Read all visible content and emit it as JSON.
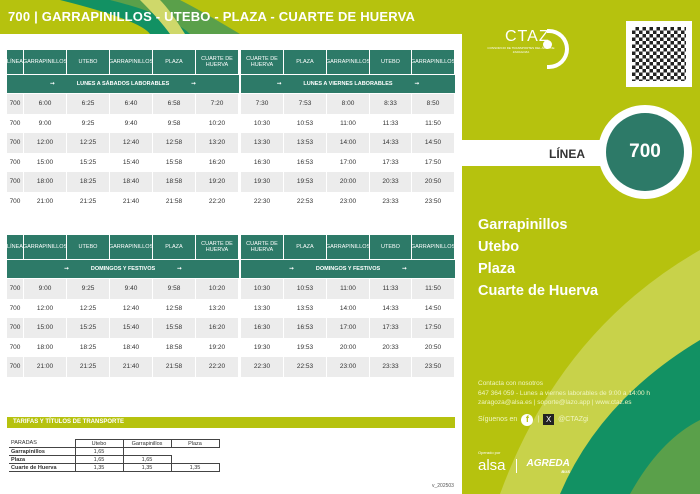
{
  "title": "700 | GARRAPINILLOS - UTEBO - PLAZA - CUARTE DE HUERVA",
  "colors": {
    "lime": "#b6c20e",
    "teal": "#2d7a68",
    "dark_green": "#129163"
  },
  "columns": [
    "LÍNEA",
    "GARRAPINILLOS",
    "UTEBO",
    "GARRAPINILLOS",
    "PLAZA",
    "CUARTE DE HUERVA",
    "CUARTE DE HUERVA",
    "PLAZA",
    "GARRAPINILLOS",
    "UTEBO",
    "GARRAPINILLOS"
  ],
  "weekday": {
    "outbound_label": "LUNES A SÁBADOS LABORABLES",
    "return_label": "LUNES A VIERNES LABORABLES",
    "rows": [
      [
        "700",
        "6:00",
        "6:25",
        "6:40",
        "6:58",
        "7:20",
        "7:30",
        "7:53",
        "8:00",
        "8:33",
        "8:50"
      ],
      [
        "700",
        "9:00",
        "9:25",
        "9:40",
        "9:58",
        "10:20",
        "10:30",
        "10:53",
        "11:00",
        "11:33",
        "11:50"
      ],
      [
        "700",
        "12:00",
        "12:25",
        "12:40",
        "12:58",
        "13:20",
        "13:30",
        "13:53",
        "14:00",
        "14:33",
        "14:50"
      ],
      [
        "700",
        "15:00",
        "15:25",
        "15:40",
        "15:58",
        "16:20",
        "16:30",
        "16:53",
        "17:00",
        "17:33",
        "17:50"
      ],
      [
        "700",
        "18:00",
        "18:25",
        "18:40",
        "18:58",
        "19:20",
        "19:30",
        "19:53",
        "20:00",
        "20:33",
        "20:50"
      ],
      [
        "700",
        "21:00",
        "21:25",
        "21:40",
        "21:58",
        "22:20",
        "22:30",
        "22:53",
        "23:00",
        "23:33",
        "23:50"
      ]
    ]
  },
  "holiday": {
    "outbound_label": "DOMINGOS Y FESTIVOS",
    "return_label": "DOMINGOS Y FESTIVOS",
    "rows": [
      [
        "700",
        "9:00",
        "9:25",
        "9:40",
        "9:58",
        "10:20",
        "10:30",
        "10:53",
        "11:00",
        "11:33",
        "11:50"
      ],
      [
        "700",
        "12:00",
        "12:25",
        "12:40",
        "12:58",
        "13:20",
        "13:30",
        "13:53",
        "14:00",
        "14:33",
        "14:50"
      ],
      [
        "700",
        "15:00",
        "15:25",
        "15:40",
        "15:58",
        "16:20",
        "16:30",
        "16:53",
        "17:00",
        "17:33",
        "17:50"
      ],
      [
        "700",
        "18:00",
        "18:25",
        "18:40",
        "18:58",
        "19:20",
        "19:30",
        "19:53",
        "20:00",
        "20:33",
        "20:50"
      ],
      [
        "700",
        "21:00",
        "21:25",
        "21:40",
        "21:58",
        "22:20",
        "22:30",
        "22:53",
        "23:00",
        "23:33",
        "23:50"
      ]
    ]
  },
  "fares": {
    "title": "TARIFAS Y TÍTULOS DE TRANSPORTE",
    "rows": [
      [
        "PARADAS",
        "Utebo",
        "Garrapinillos",
        "Plaza"
      ],
      [
        "Garrapinillos",
        "1,65",
        "",
        ""
      ],
      [
        "Plaza",
        "1,65",
        "1,65",
        ""
      ],
      [
        "Cuarte de Huerva",
        "1,35",
        "1,35",
        "1,35"
      ]
    ]
  },
  "version": "v_202503",
  "logo": {
    "name": "CTAZ",
    "subtitle": "CONSORCIO DE TRANSPORTES DEL ÁREA DE ZARAGOZA"
  },
  "line": {
    "label": "LÍNEA",
    "number": "700"
  },
  "stops": [
    "Garrapinillos",
    "Utebo",
    "Plaza",
    "Cuarte de Huerva"
  ],
  "contact": {
    "heading": "Contacta con nosotros",
    "phone_line": "647 364 059 - Lunes a viernes laborables de 9:00 a 14:00 h",
    "email_line": "zaragoza@alsa.es | soporte@lazo.app | www.ctaz.es",
    "follow": "Síguenos en",
    "handle": "@CTAZgi"
  },
  "operators": {
    "label": "Operado por",
    "op1": "alsa",
    "op2": "AGREDA",
    "op2_sub": "BUS"
  }
}
